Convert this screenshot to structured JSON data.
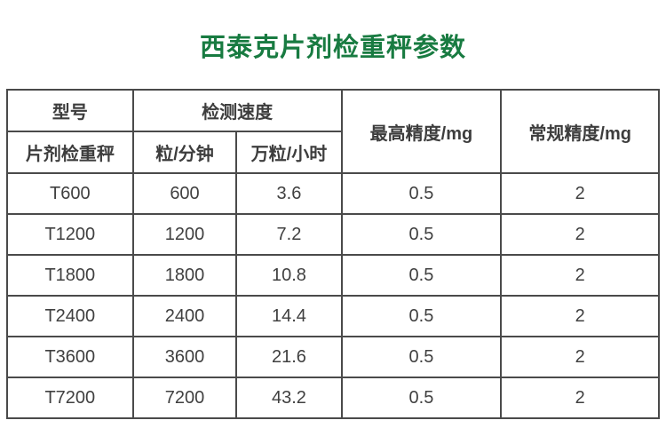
{
  "page": {
    "title": "西泰克片剂检重秤参数",
    "title_color": "#187b41"
  },
  "table": {
    "header": {
      "model_group": "型号",
      "model_sub": "片剂检重秤",
      "speed_group": "检测速度",
      "speed_per_min": "粒/分钟",
      "speed_wan_per_hour": "万粒/小时",
      "max_precision": "最高精度/mg",
      "normal_precision": "常规精度/mg"
    },
    "rows": [
      {
        "model": "T600",
        "per_min": "600",
        "wan_per_hour": "3.6",
        "max_precision": "0.5",
        "normal_precision": "2"
      },
      {
        "model": "T1200",
        "per_min": "1200",
        "wan_per_hour": "7.2",
        "max_precision": "0.5",
        "normal_precision": "2"
      },
      {
        "model": "T1800",
        "per_min": "1800",
        "wan_per_hour": "10.8",
        "max_precision": "0.5",
        "normal_precision": "2"
      },
      {
        "model": "T2400",
        "per_min": "2400",
        "wan_per_hour": "14.4",
        "max_precision": "0.5",
        "normal_precision": "2"
      },
      {
        "model": "T3600",
        "per_min": "3600",
        "wan_per_hour": "21.6",
        "max_precision": "0.5",
        "normal_precision": "2"
      },
      {
        "model": "T7200",
        "per_min": "7200",
        "wan_per_hour": "43.2",
        "max_precision": "0.5",
        "normal_precision": "2"
      }
    ]
  },
  "chart_data": {
    "type": "table",
    "title": "西泰克片剂检重秤参数",
    "columns": [
      "片剂检重秤 (型号)",
      "检测速度 粒/分钟",
      "检测速度 万粒/小时",
      "最高精度/mg",
      "常规精度/mg"
    ],
    "rows": [
      [
        "T600",
        600,
        3.6,
        0.5,
        2
      ],
      [
        "T1200",
        1200,
        7.2,
        0.5,
        2
      ],
      [
        "T1800",
        1800,
        10.8,
        0.5,
        2
      ],
      [
        "T2400",
        2400,
        14.4,
        0.5,
        2
      ],
      [
        "T3600",
        3600,
        21.6,
        0.5,
        2
      ],
      [
        "T7200",
        7200,
        43.2,
        0.5,
        2
      ]
    ]
  }
}
